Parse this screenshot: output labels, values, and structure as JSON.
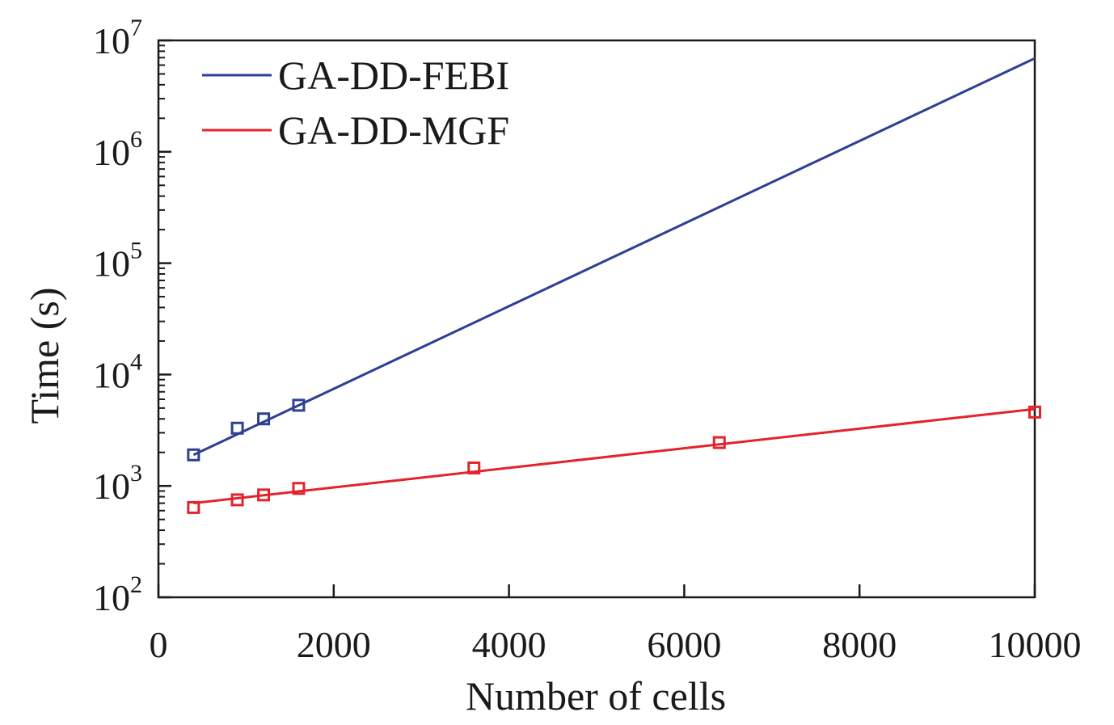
{
  "chart_data": {
    "type": "line",
    "xlabel": "Number of cells",
    "ylabel": "Time (s)",
    "x_axis": {
      "range": [
        0,
        10000
      ],
      "ticks": [
        0,
        2000,
        4000,
        6000,
        8000,
        10000
      ],
      "tick_labels": [
        "0",
        "2000",
        "4000",
        "6000",
        "8000",
        "10000"
      ]
    },
    "y_axis": {
      "scale": "log",
      "range": [
        100,
        10000000
      ],
      "ticks": [
        {
          "value": 100,
          "base": "10",
          "exp": "2"
        },
        {
          "value": 1000,
          "base": "10",
          "exp": "3"
        },
        {
          "value": 10000,
          "base": "10",
          "exp": "4"
        },
        {
          "value": 100000,
          "base": "10",
          "exp": "5"
        },
        {
          "value": 1000000,
          "base": "10",
          "exp": "6"
        },
        {
          "value": 10000000,
          "base": "10",
          "exp": "7"
        }
      ]
    },
    "grid": false,
    "legend_position": "top-left",
    "series": [
      {
        "name": "GA-DD-FEBI",
        "color": "#2e3f94",
        "marker": "square",
        "points": {
          "x": [
            400,
            900,
            1200,
            1600
          ],
          "y": [
            1900,
            3300,
            4000,
            5300
          ]
        },
        "fit_line": {
          "x": [
            400,
            10000
          ],
          "y": [
            1900,
            6900000
          ]
        }
      },
      {
        "name": "GA-DD-MGF",
        "color": "#e3232c",
        "marker": "square",
        "points": {
          "x": [
            400,
            900,
            1200,
            1600,
            3600,
            6400,
            10000
          ],
          "y": [
            640,
            750,
            830,
            950,
            1450,
            2450,
            4600
          ]
        },
        "fit_line": {
          "x": [
            400,
            10000
          ],
          "y": [
            700,
            4900
          ]
        }
      }
    ]
  }
}
